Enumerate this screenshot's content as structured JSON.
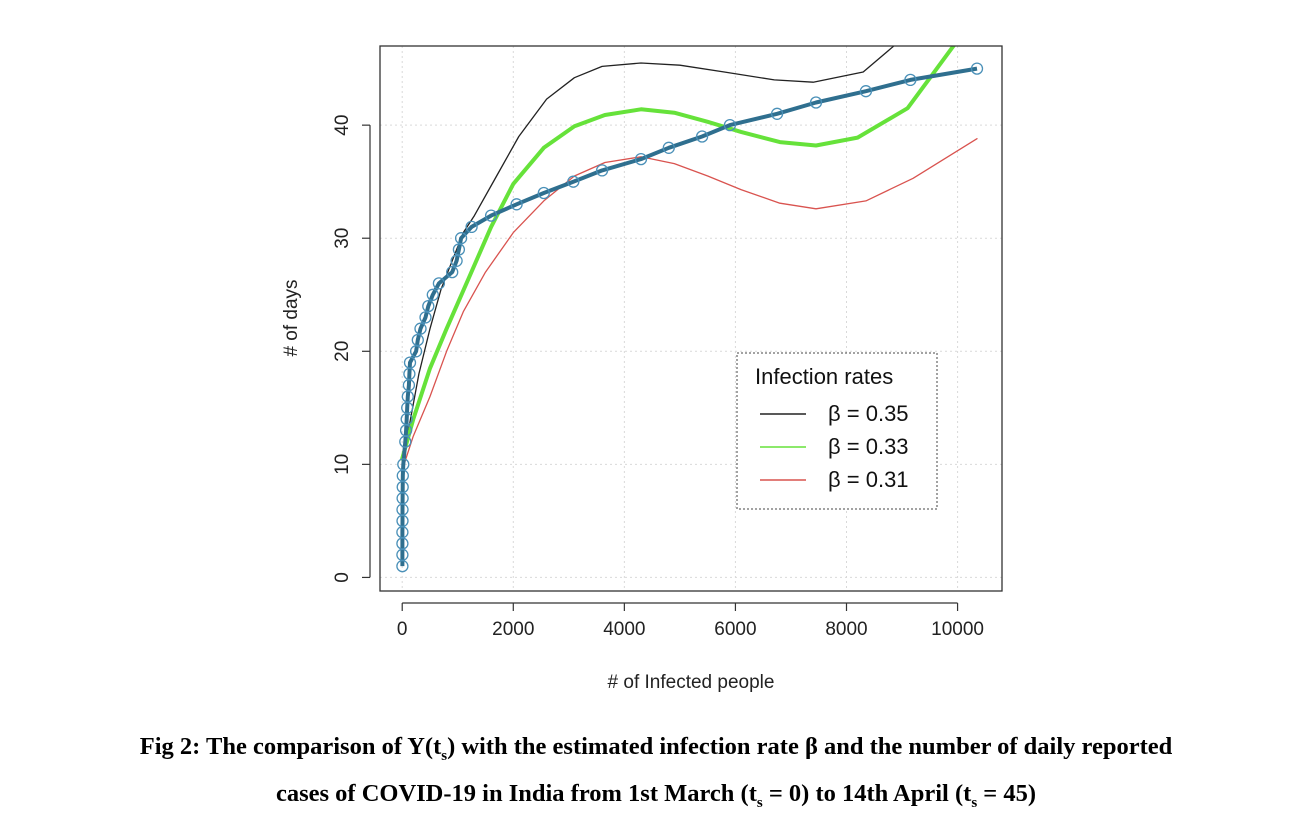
{
  "caption": {
    "line1_start": "Fig 2: The comparison of Y(t",
    "sub1": "s",
    "line1_end": ") with the estimated infection rate β and the number of daily reported",
    "line2_start": "cases of COVID-19 in India from 1st March (t",
    "sub2": "s",
    "line2_mid": " = 0) to 14th April (t",
    "sub3": "s",
    "line2_end": " = 45)"
  },
  "chart_data": {
    "type": "line",
    "xlabel": "# of Infected people",
    "ylabel": "# of days",
    "xlim": [
      -400,
      10800
    ],
    "ylim": [
      -1.2,
      47
    ],
    "xticks": [
      0,
      2000,
      4000,
      6000,
      8000,
      10000
    ],
    "yticks": [
      0,
      10,
      20,
      30,
      40
    ],
    "grid": true,
    "legend": {
      "title": "Infection rates",
      "placement": "right",
      "entries": [
        {
          "label": "β = 0.35",
          "color": "#222222"
        },
        {
          "label": "β = 0.33",
          "color": "#66e23a"
        },
        {
          "label": "β = 0.31",
          "color": "#d9534f"
        }
      ]
    },
    "observed": {
      "color": "#2f6f8f",
      "marker_color": "#4a90b8",
      "points": [
        [
          3,
          1
        ],
        [
          3,
          2
        ],
        [
          3,
          3
        ],
        [
          4,
          4
        ],
        [
          5,
          5
        ],
        [
          6,
          6
        ],
        [
          7,
          7
        ],
        [
          8,
          8
        ],
        [
          10,
          9
        ],
        [
          20,
          10
        ],
        [
          55,
          12
        ],
        [
          70,
          13
        ],
        [
          80,
          14
        ],
        [
          90,
          15
        ],
        [
          100,
          16
        ],
        [
          120,
          17
        ],
        [
          130,
          18
        ],
        [
          140,
          19
        ],
        [
          250,
          20
        ],
        [
          280,
          21
        ],
        [
          330,
          22
        ],
        [
          420,
          23
        ],
        [
          470,
          24
        ],
        [
          550,
          25
        ],
        [
          660,
          26
        ],
        [
          900,
          27
        ],
        [
          980,
          28
        ],
        [
          1020,
          29
        ],
        [
          1060,
          30
        ],
        [
          1250,
          31
        ],
        [
          1600,
          32
        ],
        [
          2060,
          33
        ],
        [
          2550,
          34
        ],
        [
          3080,
          35
        ],
        [
          3600,
          36
        ],
        [
          4300,
          37
        ],
        [
          4800,
          38
        ],
        [
          5400,
          39
        ],
        [
          5900,
          40
        ],
        [
          6750,
          41
        ],
        [
          7450,
          42
        ],
        [
          8350,
          43
        ],
        [
          9150,
          44
        ],
        [
          10350,
          45
        ]
      ]
    },
    "series": [
      {
        "name": "β = 0.35",
        "color": "#222222",
        "points": [
          [
            0,
            10
          ],
          [
            150,
            14
          ],
          [
            300,
            18
          ],
          [
            500,
            22
          ],
          [
            700,
            25.5
          ],
          [
            900,
            28
          ],
          [
            1100,
            30.5
          ],
          [
            1300,
            32
          ],
          [
            1700,
            35.5
          ],
          [
            2100,
            39
          ],
          [
            2600,
            42.3
          ],
          [
            3100,
            44.2
          ],
          [
            3600,
            45.2
          ],
          [
            4300,
            45.5
          ],
          [
            5000,
            45.3
          ],
          [
            5800,
            44.7
          ],
          [
            6700,
            44
          ],
          [
            7400,
            43.8
          ],
          [
            8300,
            44.7
          ],
          [
            8900,
            47.2
          ]
        ]
      },
      {
        "name": "β = 0.33",
        "color": "#66e23a",
        "points": [
          [
            0,
            10.5
          ],
          [
            200,
            14
          ],
          [
            500,
            18.5
          ],
          [
            800,
            22
          ],
          [
            1200,
            26.5
          ],
          [
            1600,
            31
          ],
          [
            2000,
            34.8
          ],
          [
            2550,
            38
          ],
          [
            3100,
            39.9
          ],
          [
            3650,
            40.9
          ],
          [
            4300,
            41.4
          ],
          [
            4900,
            41.1
          ],
          [
            5500,
            40.3
          ],
          [
            6100,
            39.4
          ],
          [
            6800,
            38.5
          ],
          [
            7450,
            38.2
          ],
          [
            8200,
            38.9
          ],
          [
            9100,
            41.5
          ],
          [
            9550,
            44.5
          ],
          [
            10000,
            47.5
          ]
        ]
      },
      {
        "name": "β = 0.31",
        "color": "#d9534f",
        "points": [
          [
            0,
            9.5
          ],
          [
            200,
            12.5
          ],
          [
            500,
            16
          ],
          [
            800,
            20
          ],
          [
            1100,
            23.5
          ],
          [
            1500,
            27
          ],
          [
            2000,
            30.5
          ],
          [
            2550,
            33.3
          ],
          [
            3100,
            35.5
          ],
          [
            3650,
            36.7
          ],
          [
            4300,
            37.2
          ],
          [
            4900,
            36.6
          ],
          [
            5500,
            35.5
          ],
          [
            6100,
            34.3
          ],
          [
            6800,
            33.1
          ],
          [
            7450,
            32.6
          ],
          [
            8350,
            33.3
          ],
          [
            9200,
            35.3
          ],
          [
            10350,
            38.8
          ]
        ]
      }
    ]
  }
}
